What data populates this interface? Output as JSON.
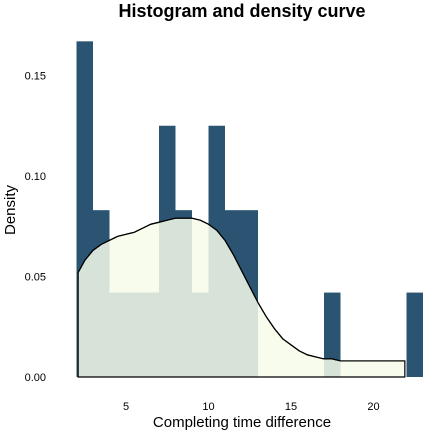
{
  "chart_data": {
    "type": "bar",
    "title": "Histogram and density curve",
    "xlabel": "Completing time difference",
    "ylabel": "Density",
    "xlim": [
      1.6,
      22.5
    ],
    "ylim": [
      0,
      0.17
    ],
    "x_ticks": [
      5,
      10,
      15,
      20
    ],
    "x_tick_labels": [
      "5",
      "10",
      "15",
      "20"
    ],
    "y_ticks": [
      0,
      0.05,
      0.1,
      0.15
    ],
    "y_tick_labels": [
      "0.00",
      "0.05",
      "0.10",
      "0.15"
    ],
    "grid": false,
    "histogram": {
      "bin_width": 1,
      "bins": [
        {
          "x0": 2,
          "x1": 3,
          "density": 0.167
        },
        {
          "x0": 3,
          "x1": 4,
          "density": 0.083
        },
        {
          "x0": 4,
          "x1": 5,
          "density": 0.042
        },
        {
          "x0": 5,
          "x1": 6,
          "density": 0.042
        },
        {
          "x0": 6,
          "x1": 7,
          "density": 0.042
        },
        {
          "x0": 7,
          "x1": 8,
          "density": 0.125
        },
        {
          "x0": 8,
          "x1": 9,
          "density": 0.083
        },
        {
          "x0": 9,
          "x1": 10,
          "density": 0.042
        },
        {
          "x0": 10,
          "x1": 11,
          "density": 0.125
        },
        {
          "x0": 11,
          "x1": 12,
          "density": 0.083
        },
        {
          "x0": 12,
          "x1": 13,
          "density": 0.083
        },
        {
          "x0": 13,
          "x1": 14,
          "density": 0
        },
        {
          "x0": 14,
          "x1": 15,
          "density": 0
        },
        {
          "x0": 15,
          "x1": 16,
          "density": 0
        },
        {
          "x0": 16,
          "x1": 17,
          "density": 0
        },
        {
          "x0": 17,
          "x1": 18,
          "density": 0.042
        },
        {
          "x0": 18,
          "x1": 19,
          "density": 0
        },
        {
          "x0": 19,
          "x1": 20,
          "density": 0
        },
        {
          "x0": 20,
          "x1": 21,
          "density": 0
        },
        {
          "x0": 21,
          "x1": 22,
          "density": 0
        },
        {
          "x0": 22,
          "x1": 23,
          "density": 0.042
        }
      ]
    },
    "density_curve": {
      "x": [
        2.1,
        2.5,
        3,
        3.5,
        4,
        4.5,
        5,
        5.5,
        6,
        6.5,
        7,
        7.5,
        8,
        8.5,
        9,
        9.5,
        10,
        10.5,
        11,
        11.5,
        12,
        12.5,
        13,
        13.5,
        14,
        14.5,
        15,
        15.5,
        16,
        16.5,
        17,
        17.5,
        18,
        18.5,
        19,
        19.5,
        20,
        20.5,
        21,
        21.5,
        21.9
      ],
      "y": [
        0.052,
        0.058,
        0.063,
        0.066,
        0.068,
        0.07,
        0.071,
        0.072,
        0.074,
        0.076,
        0.077,
        0.078,
        0.079,
        0.079,
        0.079,
        0.078,
        0.076,
        0.073,
        0.068,
        0.061,
        0.053,
        0.045,
        0.037,
        0.03,
        0.024,
        0.019,
        0.016,
        0.013,
        0.011,
        0.01,
        0.009,
        0.009,
        0.008,
        0.008,
        0.008,
        0.008,
        0.008,
        0.008,
        0.008,
        0.008,
        0.008
      ]
    },
    "colors": {
      "bar_fill": "#2b5472",
      "density_fill": "#f6fbea",
      "density_fill_opacity": 0.85,
      "density_line": "#000000"
    }
  }
}
